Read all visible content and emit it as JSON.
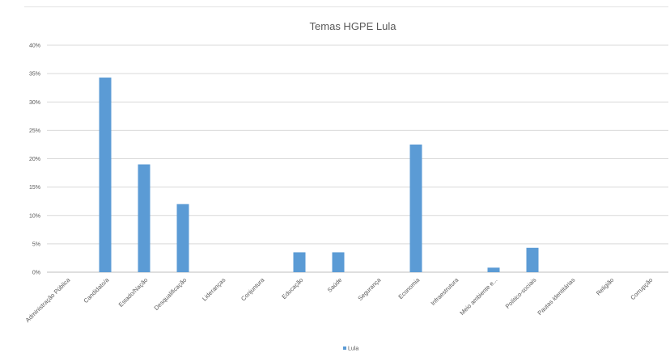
{
  "chart_data": {
    "type": "bar",
    "title": "Temas  HGPE Lula",
    "xlabel": "",
    "ylabel": "",
    "ylim": [
      0,
      40
    ],
    "yticks": [
      "0%",
      "5%",
      "10%",
      "15%",
      "20%",
      "25%",
      "30%",
      "35%",
      "40%"
    ],
    "grid": true,
    "legend_position": "bottom",
    "categories": [
      "Administração Pública",
      "Candidato/a",
      "Estado/Nação",
      "Desqualificação",
      "Lideranças",
      "Conjuntura",
      "Educação",
      "Saúde",
      "Segurança",
      "Economia",
      "Infraestrutura",
      "Meio ambiente e...",
      "Político-sociais",
      "Pautas identitárias",
      "Religião",
      "Corrupção"
    ],
    "series": [
      {
        "name": "Lula",
        "color": "#5b9bd5",
        "values": [
          0,
          34.3,
          19,
          12,
          0,
          0,
          3.5,
          3.5,
          0,
          22.5,
          0,
          0.8,
          4.3,
          0,
          0,
          0
        ]
      }
    ]
  }
}
